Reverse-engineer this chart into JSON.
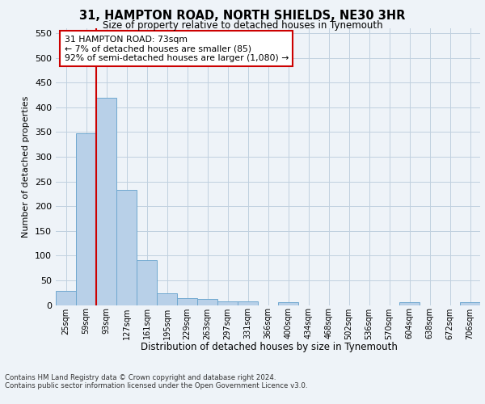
{
  "title": "31, HAMPTON ROAD, NORTH SHIELDS, NE30 3HR",
  "subtitle": "Size of property relative to detached houses in Tynemouth",
  "xlabel": "Distribution of detached houses by size in Tynemouth",
  "ylabel": "Number of detached properties",
  "bar_values": [
    28,
    348,
    420,
    233,
    90,
    24,
    14,
    13,
    7,
    7,
    0,
    5,
    0,
    0,
    0,
    0,
    0,
    5,
    0,
    0,
    5
  ],
  "bar_labels": [
    "25sqm",
    "59sqm",
    "93sqm",
    "127sqm",
    "161sqm",
    "195sqm",
    "229sqm",
    "263sqm",
    "297sqm",
    "331sqm",
    "366sqm",
    "400sqm",
    "434sqm",
    "468sqm",
    "502sqm",
    "536sqm",
    "570sqm",
    "604sqm",
    "638sqm",
    "672sqm",
    "706sqm"
  ],
  "bar_color": "#b8d0e8",
  "bar_edge_color": "#6fa8d0",
  "vline_x": 1.5,
  "vline_color": "#cc0000",
  "annotation_text": "31 HAMPTON ROAD: 73sqm\n← 7% of detached houses are smaller (85)\n92% of semi-detached houses are larger (1,080) →",
  "annotation_box_color": "#ffffff",
  "annotation_box_edge": "#cc0000",
  "ylim": [
    0,
    560
  ],
  "yticks": [
    0,
    50,
    100,
    150,
    200,
    250,
    300,
    350,
    400,
    450,
    500,
    550
  ],
  "footer_line1": "Contains HM Land Registry data © Crown copyright and database right 2024.",
  "footer_line2": "Contains public sector information licensed under the Open Government Licence v3.0.",
  "bg_color": "#eef3f8",
  "plot_bg_color": "#eef3f8"
}
